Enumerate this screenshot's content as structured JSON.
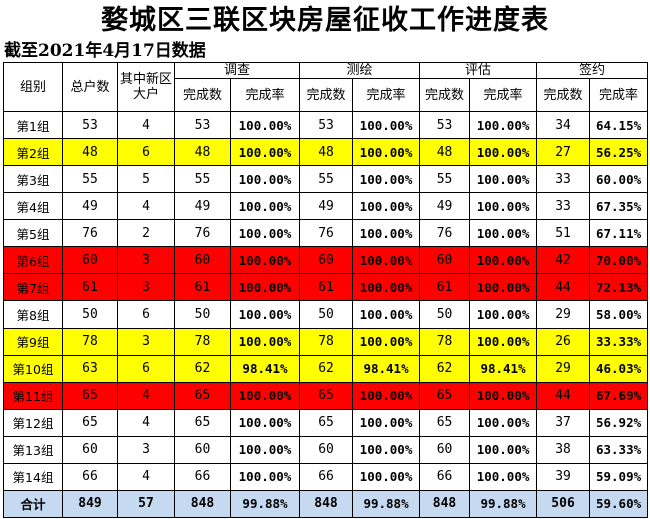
{
  "colors": {
    "yellow": "#ffff00",
    "red": "#ff0000",
    "white": "#ffffff",
    "total": "#c5d9f1"
  },
  "title": "婺城区三联区块房屋征收工作进度表",
  "subtitle": "截至2021年4月17日数据",
  "headers": {
    "group": "组别",
    "households": "总户数",
    "big": "其中新区大户",
    "survey": "调查",
    "mapping": "测绘",
    "appraisal": "评估",
    "signing": "签约",
    "done_count": "完成数",
    "done_rate": "完成率"
  },
  "rows": [
    {
      "name": "第1组",
      "color": "white",
      "values": [
        "53",
        "4",
        "53",
        "100.00%",
        "53",
        "100.00%",
        "53",
        "100.00%",
        "34",
        "64.15%"
      ]
    },
    {
      "name": "第2组",
      "color": "yellow",
      "values": [
        "48",
        "6",
        "48",
        "100.00%",
        "48",
        "100.00%",
        "48",
        "100.00%",
        "27",
        "56.25%"
      ]
    },
    {
      "name": "第3组",
      "color": "white",
      "values": [
        "55",
        "5",
        "55",
        "100.00%",
        "55",
        "100.00%",
        "55",
        "100.00%",
        "33",
        "60.00%"
      ]
    },
    {
      "name": "第4组",
      "color": "white",
      "values": [
        "49",
        "4",
        "49",
        "100.00%",
        "49",
        "100.00%",
        "49",
        "100.00%",
        "33",
        "67.35%"
      ]
    },
    {
      "name": "第5组",
      "color": "white",
      "values": [
        "76",
        "2",
        "76",
        "100.00%",
        "76",
        "100.00%",
        "76",
        "100.00%",
        "51",
        "67.11%"
      ]
    },
    {
      "name": "第6组",
      "color": "red",
      "values": [
        "60",
        "3",
        "60",
        "100.00%",
        "60",
        "100.00%",
        "60",
        "100.00%",
        "42",
        "70.00%"
      ]
    },
    {
      "name": "第7组",
      "color": "red",
      "values": [
        "61",
        "3",
        "61",
        "100.00%",
        "61",
        "100.00%",
        "61",
        "100.00%",
        "44",
        "72.13%"
      ]
    },
    {
      "name": "第8组",
      "color": "white",
      "values": [
        "50",
        "6",
        "50",
        "100.00%",
        "50",
        "100.00%",
        "50",
        "100.00%",
        "29",
        "58.00%"
      ]
    },
    {
      "name": "第9组",
      "color": "yellow",
      "values": [
        "78",
        "3",
        "78",
        "100.00%",
        "78",
        "100.00%",
        "78",
        "100.00%",
        "26",
        "33.33%"
      ]
    },
    {
      "name": "第10组",
      "color": "yellow",
      "values": [
        "63",
        "6",
        "62",
        "98.41%",
        "62",
        "98.41%",
        "62",
        "98.41%",
        "29",
        "46.03%"
      ]
    },
    {
      "name": "第11组",
      "color": "red",
      "values": [
        "65",
        "4",
        "65",
        "100.00%",
        "65",
        "100.00%",
        "65",
        "100.00%",
        "44",
        "67.69%"
      ]
    },
    {
      "name": "第12组",
      "color": "white",
      "values": [
        "65",
        "4",
        "65",
        "100.00%",
        "65",
        "100.00%",
        "65",
        "100.00%",
        "37",
        "56.92%"
      ]
    },
    {
      "name": "第13组",
      "color": "white",
      "values": [
        "60",
        "3",
        "60",
        "100.00%",
        "60",
        "100.00%",
        "60",
        "100.00%",
        "38",
        "63.33%"
      ]
    },
    {
      "name": "第14组",
      "color": "white",
      "values": [
        "66",
        "4",
        "66",
        "100.00%",
        "66",
        "100.00%",
        "66",
        "100.00%",
        "39",
        "59.09%"
      ]
    }
  ],
  "total": {
    "name": "合计",
    "color": "total",
    "values": [
      "849",
      "57",
      "848",
      "99.88%",
      "848",
      "99.88%",
      "848",
      "99.88%",
      "506",
      "59.60%"
    ]
  }
}
